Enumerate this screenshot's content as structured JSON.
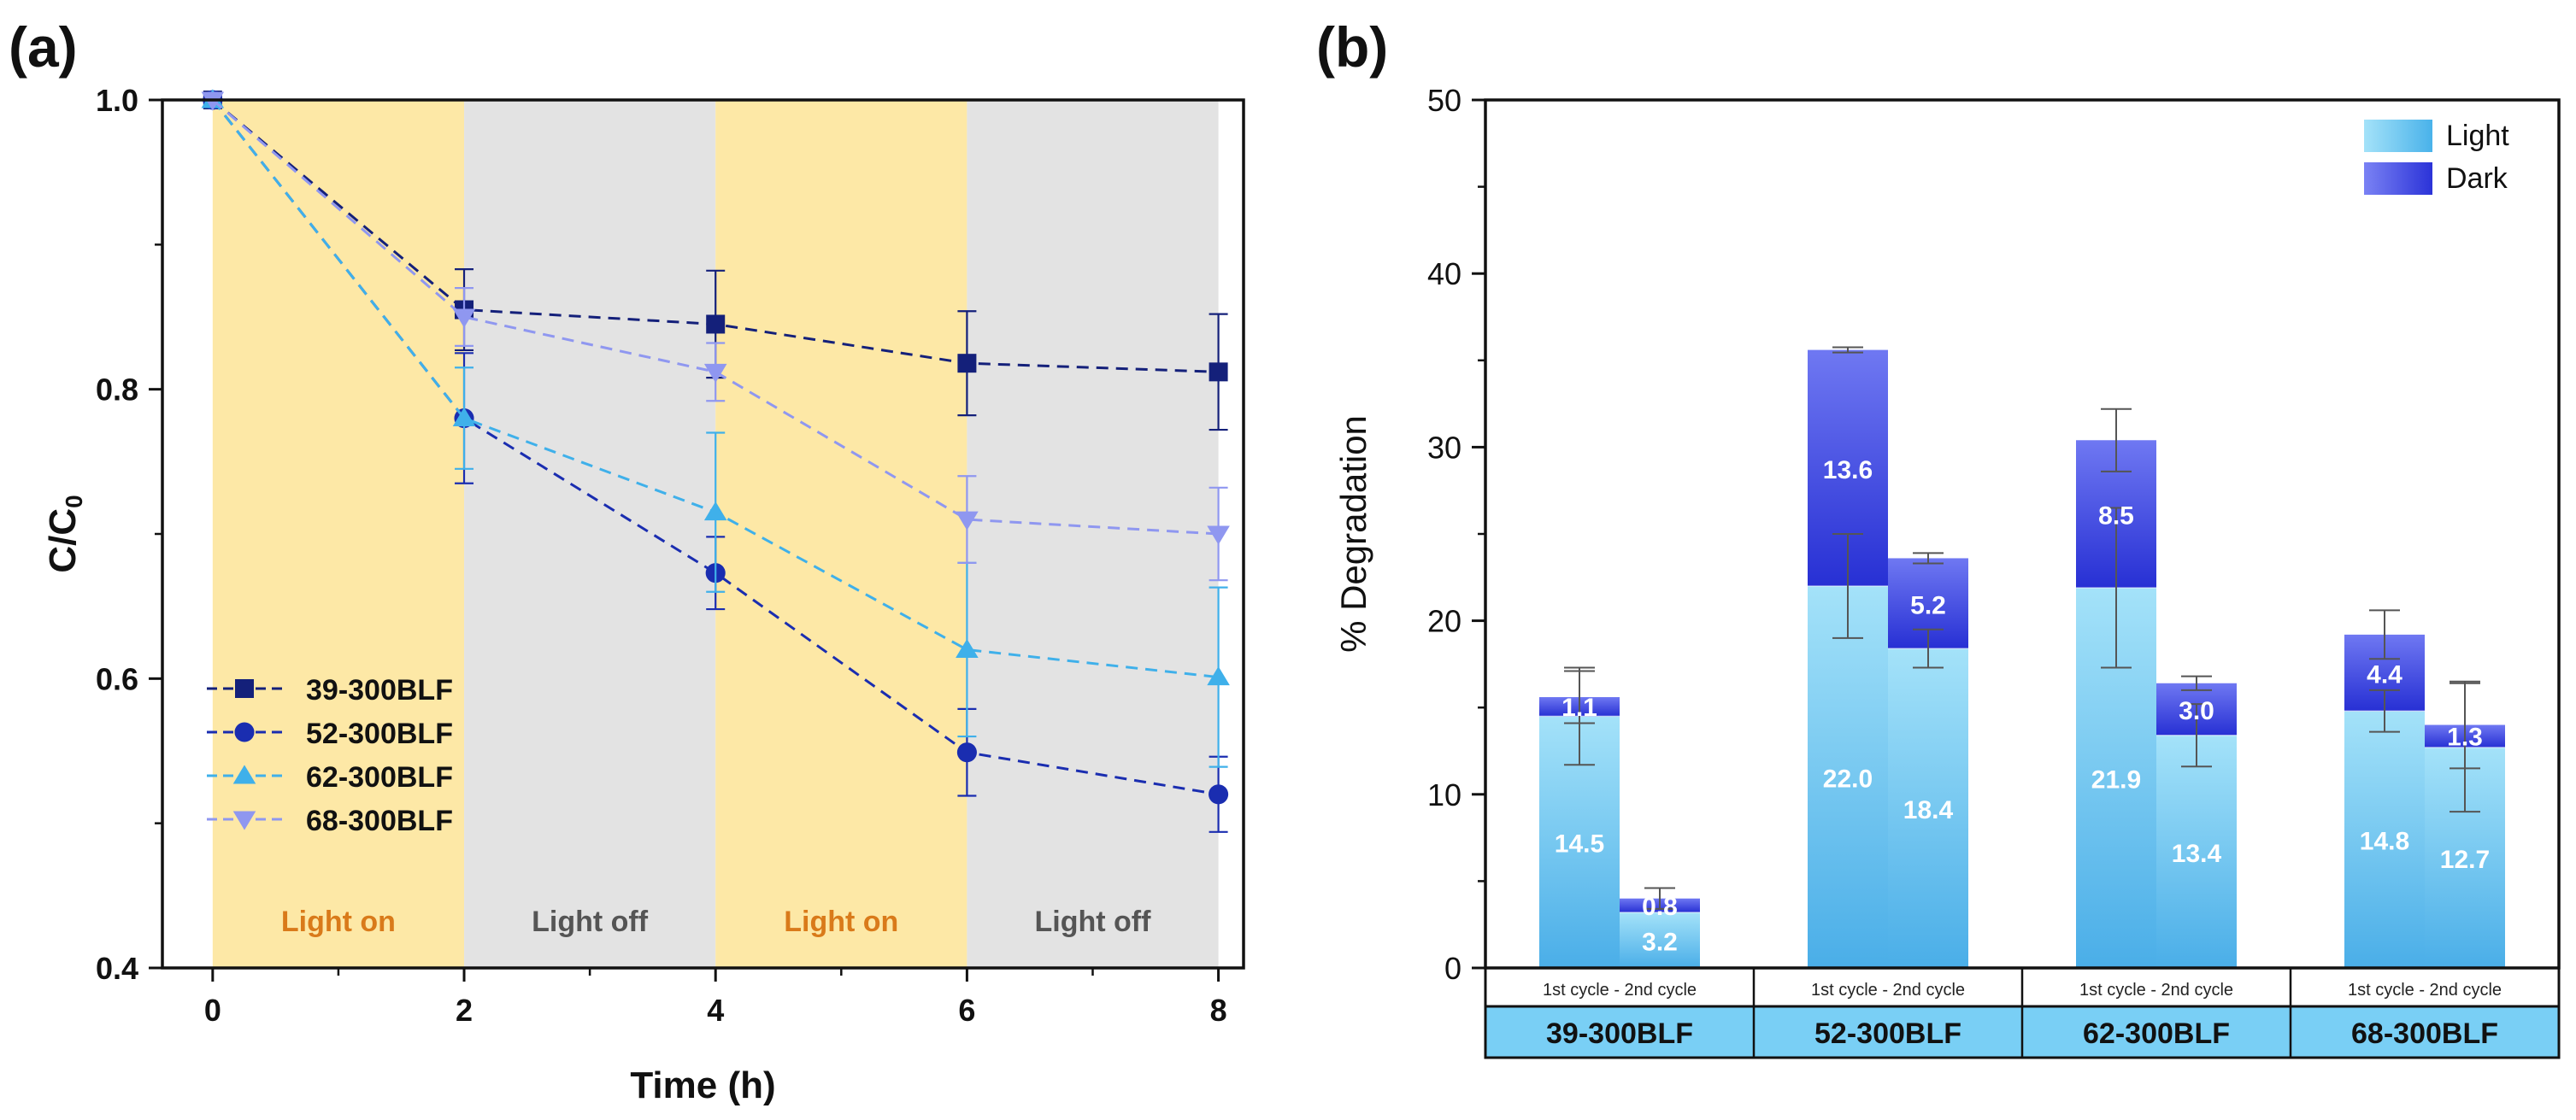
{
  "panel_labels": {
    "a": "(a)",
    "b": "(b)"
  },
  "chart_data": [
    {
      "type": "line",
      "title": "",
      "xlabel": "Time (h)",
      "ylabel": "C/C",
      "ylabel_sub": "0",
      "xlim": [
        -0.4,
        8.2
      ],
      "ylim": [
        0.4,
        1.0
      ],
      "x_ticks": [
        0,
        2,
        4,
        6,
        8
      ],
      "y_ticks": [
        0.4,
        0.6,
        0.8,
        1.0
      ],
      "x_tick_labels": [
        "0",
        "2",
        "4",
        "6",
        "8"
      ],
      "y_tick_labels": [
        "0.4",
        "0.6",
        "0.8",
        "1.0"
      ],
      "shaded_regions": [
        {
          "from": 0,
          "to": 2,
          "label": "Light on",
          "fill": "#fde8a6",
          "text_color": "#d97a1a"
        },
        {
          "from": 2,
          "to": 4,
          "label": "Light off",
          "fill": "#e3e3e3",
          "text_color": "#555555"
        },
        {
          "from": 4,
          "to": 6,
          "label": "Light on",
          "fill": "#fde8a6",
          "text_color": "#d97a1a"
        },
        {
          "from": 6,
          "to": 8,
          "label": "Light off",
          "fill": "#e3e3e3",
          "text_color": "#555555"
        }
      ],
      "legend_position": "bottom-left",
      "x": [
        0,
        2,
        4,
        6,
        8
      ],
      "series": [
        {
          "name": "39-300BLF",
          "marker": "square",
          "color": "#14207a",
          "values": [
            1.0,
            0.855,
            0.845,
            0.818,
            0.812
          ],
          "errors": [
            0,
            0.028,
            0.037,
            0.036,
            0.04
          ]
        },
        {
          "name": "52-300BLF",
          "marker": "circle",
          "color": "#1a2db0",
          "values": [
            1.0,
            0.78,
            0.673,
            0.549,
            0.52
          ],
          "errors": [
            0,
            0.045,
            0.025,
            0.03,
            0.026
          ]
        },
        {
          "name": "62-300BLF",
          "marker": "triangle-up",
          "color": "#3fb0ea",
          "values": [
            1.0,
            0.78,
            0.715,
            0.62,
            0.601
          ],
          "errors": [
            0,
            0.035,
            0.055,
            0.06,
            0.062
          ]
        },
        {
          "name": "68-300BLF",
          "marker": "triangle-down",
          "color": "#8f97f0",
          "values": [
            1.0,
            0.85,
            0.812,
            0.71,
            0.7
          ],
          "errors": [
            0,
            0.02,
            0.02,
            0.03,
            0.032
          ]
        }
      ]
    },
    {
      "type": "bar",
      "stacked": true,
      "title": "",
      "xlabel": "",
      "ylabel": "% Degradation",
      "ylim": [
        0,
        50
      ],
      "y_ticks": [
        0,
        10,
        20,
        30,
        40,
        50
      ],
      "y_tick_labels": [
        "0",
        "10",
        "20",
        "30",
        "40",
        "50"
      ],
      "legend_position": "top-right",
      "legend": [
        {
          "name": "Light",
          "colors": [
            "#9fe0f8",
            "#49b2ea"
          ]
        },
        {
          "name": "Dark",
          "colors": [
            "#7a82f4",
            "#2b33d8"
          ]
        }
      ],
      "group_sublabel": "1st cycle - 2nd cycle",
      "groups": [
        {
          "name": "39-300BLF",
          "bars": [
            {
              "light": 14.5,
              "dark": 1.1,
              "light_label": "14.5",
              "dark_label": "1.1",
              "light_err": 2.8,
              "total_err": 1.5
            },
            {
              "light": 3.2,
              "dark": 0.8,
              "light_label": "3.2",
              "dark_label": "0.8",
              "light_err": 0.0,
              "total_err": 0.6
            }
          ]
        },
        {
          "name": "52-300BLF",
          "bars": [
            {
              "light": 22.0,
              "dark": 13.6,
              "light_label": "22.0",
              "dark_label": "13.6",
              "light_err": 3.0,
              "total_err": 0.15
            },
            {
              "light": 18.4,
              "dark": 5.2,
              "light_label": "18.4",
              "dark_label": "5.2",
              "light_err": 1.1,
              "total_err": 0.3
            }
          ]
        },
        {
          "name": "62-300BLF",
          "bars": [
            {
              "light": 21.9,
              "dark": 8.5,
              "light_label": "21.9",
              "dark_label": "8.5",
              "light_err": 4.6,
              "total_err": 1.8
            },
            {
              "light": 13.4,
              "dark": 3.0,
              "light_label": "13.4",
              "dark_label": "3.0",
              "light_err": 1.8,
              "total_err": 0.4
            }
          ]
        },
        {
          "name": "68-300BLF",
          "bars": [
            {
              "light": 14.8,
              "dark": 4.4,
              "light_label": "14.8",
              "dark_label": "4.4",
              "light_err": 1.2,
              "total_err": 1.4
            },
            {
              "light": 12.7,
              "dark": 1.3,
              "light_label": "12.7",
              "dark_label": "1.3",
              "light_err": 3.7,
              "total_err": 2.5
            }
          ]
        }
      ]
    }
  ]
}
